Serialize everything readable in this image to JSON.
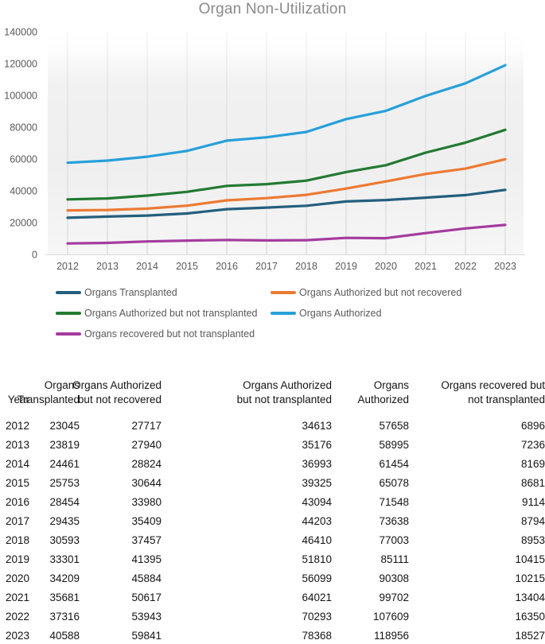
{
  "title": "Organ Non-Utilization",
  "chart_data": {
    "type": "line",
    "title": "Organ Non-Utilization",
    "x": [
      2012,
      2013,
      2014,
      2015,
      2016,
      2017,
      2018,
      2019,
      2020,
      2021,
      2022,
      2023
    ],
    "series": [
      {
        "name": "Organs Transplanted",
        "color": "#235F7E",
        "values": [
          23045,
          23819,
          24461,
          25753,
          28454,
          29435,
          30593,
          33301,
          34209,
          35681,
          37316,
          40588
        ]
      },
      {
        "name": "Organs Authorized but not recovered",
        "color": "#EC7A33",
        "values": [
          27717,
          27940,
          28824,
          30644,
          33980,
          35409,
          37457,
          41395,
          45884,
          50617,
          53943,
          59841
        ]
      },
      {
        "name": "Organs Authorized but not transplanted",
        "color": "#237A32",
        "values": [
          34613,
          35176,
          36993,
          39325,
          43094,
          44203,
          46410,
          51810,
          56099,
          64021,
          70293,
          78368
        ]
      },
      {
        "name": "Organs Authorized",
        "color": "#27A0D9",
        "values": [
          57658,
          58995,
          61454,
          65078,
          71548,
          73638,
          77003,
          85111,
          90308,
          99702,
          107609,
          118956
        ]
      },
      {
        "name": "Organs recovered but not transplanted",
        "color": "#A53B9E",
        "values": [
          6896,
          7236,
          8169,
          8681,
          9114,
          8794,
          8953,
          10415,
          10215,
          13404,
          16350,
          18527
        ]
      }
    ],
    "xlabel": "",
    "ylabel": "",
    "ylim": [
      0,
      140000
    ],
    "ytick_step": 20000,
    "yticks": [
      0,
      20000,
      40000,
      60000,
      80000,
      100000,
      120000,
      140000
    ],
    "grid": "vertical-only",
    "legend_position": "bottom"
  },
  "styles": {
    "axis_text_color": "#595959",
    "grid_color": "#D9D9D9",
    "title_color": "#8a8a8a"
  },
  "table": {
    "columns": [
      {
        "line1": "",
        "line2": "Year"
      },
      {
        "line1": "Organs",
        "line2": "Transplanted"
      },
      {
        "line1": "Organs Authorized",
        "line2": "but not recovered"
      },
      {
        "line1": "Organs Authorized",
        "line2": "but not transplanted"
      },
      {
        "line1": "Organs",
        "line2": "Authorized"
      },
      {
        "line1": "Organs recovered but",
        "line2": "not transplanted"
      }
    ],
    "rows": [
      [
        "2012",
        "23045",
        "27717",
        "34613",
        "57658",
        "6896"
      ],
      [
        "2013",
        "23819",
        "27940",
        "35176",
        "58995",
        "7236"
      ],
      [
        "2014",
        "24461",
        "28824",
        "36993",
        "61454",
        "8169"
      ],
      [
        "2015",
        "25753",
        "30644",
        "39325",
        "65078",
        "8681"
      ],
      [
        "2016",
        "28454",
        "33980",
        "43094",
        "71548",
        "9114"
      ],
      [
        "2017",
        "29435",
        "35409",
        "44203",
        "73638",
        "8794"
      ],
      [
        "2018",
        "30593",
        "37457",
        "46410",
        "77003",
        "8953"
      ],
      [
        "2019",
        "33301",
        "41395",
        "51810",
        "85111",
        "10415"
      ],
      [
        "2020",
        "34209",
        "45884",
        "56099",
        "90308",
        "10215"
      ],
      [
        "2021",
        "35681",
        "50617",
        "64021",
        "99702",
        "13404"
      ],
      [
        "2022",
        "37316",
        "53943",
        "70293",
        "107609",
        "16350"
      ],
      [
        "2023",
        "40588",
        "59841",
        "78368",
        "118956",
        "18527"
      ]
    ]
  }
}
